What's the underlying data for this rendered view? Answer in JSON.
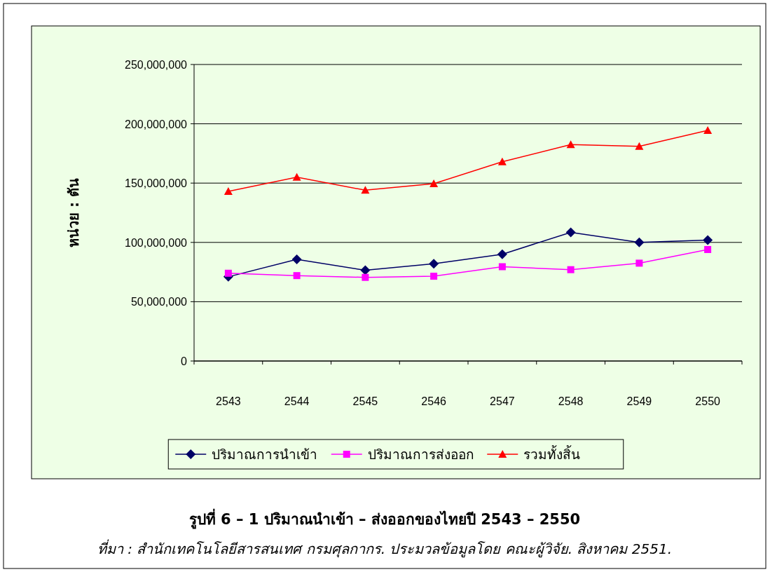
{
  "chart_data": {
    "type": "line",
    "title": "รูปที่  6 – 1 ปริมาณนำเข้า – ส่งออกของไทยปี 2543 – 2550",
    "ylabel": "หน่วย : ตัน",
    "annotations": [
      "ที่มา : สำนักเทคโนโลยีสารสนเทศ กรมศุลกากร. ประมวลข้อมูลโดย คณะผู้วิจัย. สิงหาคม 2551."
    ],
    "categories": [
      "2543",
      "2544",
      "2545",
      "2546",
      "2547",
      "2548",
      "2549",
      "2550"
    ],
    "series": [
      {
        "name": "ปริมาณการนำเข้า",
        "color": "#000066",
        "marker": "diamond",
        "values": [
          71000000,
          85700000,
          76500000,
          82000000,
          90000000,
          108500000,
          100000000,
          102000000
        ]
      },
      {
        "name": "ปริมาณการส่งออก",
        "color": "#ff00ff",
        "marker": "square",
        "values": [
          74000000,
          72000000,
          70500000,
          71500000,
          79500000,
          77000000,
          82500000,
          94000000
        ]
      },
      {
        "name": "รวมทั้งสิ้น",
        "color": "#ff0000",
        "marker": "triangle",
        "values": [
          143000000,
          155000000,
          144000000,
          149500000,
          168000000,
          182500000,
          181000000,
          194500000
        ]
      }
    ],
    "ylim": [
      0,
      250000000
    ],
    "yticks": [
      0,
      {
        "value": 50000000,
        "label": "50,000,000"
      },
      {
        "value": 100000000,
        "label": "100,000,000"
      },
      {
        "value": 150000000,
        "label": "150,000,000"
      },
      {
        "value": 200000000,
        "label": "200,000,000"
      },
      {
        "value": 250000000,
        "label": "250,000,000"
      }
    ],
    "grid": "y",
    "legend": "bottom"
  }
}
